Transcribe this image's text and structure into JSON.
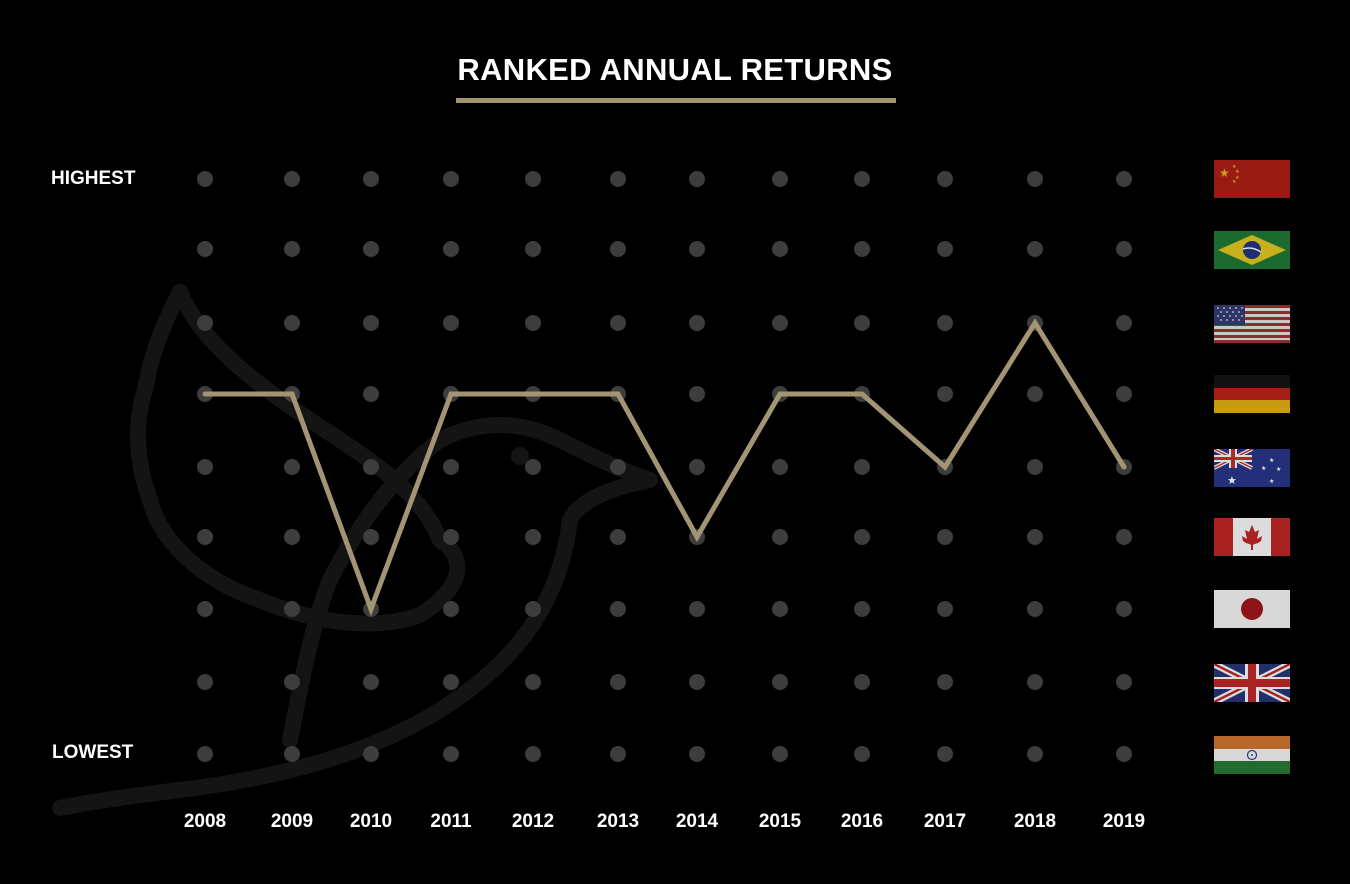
{
  "chart_data": {
    "type": "line",
    "title": "RANKED ANNUAL RETURNS",
    "rank_labels": {
      "highest": "HIGHEST",
      "lowest": "LOWEST"
    },
    "x": [
      "2008",
      "2009",
      "2010",
      "2011",
      "2012",
      "2013",
      "2014",
      "2015",
      "2016",
      "2017",
      "2018",
      "2019"
    ],
    "ranks": [
      {
        "rank": 1,
        "country": "China",
        "flag": "china-flag"
      },
      {
        "rank": 2,
        "country": "Brazil",
        "flag": "brazil-flag"
      },
      {
        "rank": 3,
        "country": "United States",
        "flag": "usa-flag"
      },
      {
        "rank": 4,
        "country": "Germany",
        "flag": "germany-flag"
      },
      {
        "rank": 5,
        "country": "Australia",
        "flag": "australia-flag"
      },
      {
        "rank": 6,
        "country": "Canada",
        "flag": "canada-flag"
      },
      {
        "rank": 7,
        "country": "Japan",
        "flag": "japan-flag"
      },
      {
        "rank": 8,
        "country": "United Kingdom",
        "flag": "uk-flag"
      },
      {
        "rank": 9,
        "country": "India",
        "flag": "india-flag"
      }
    ],
    "series": [
      {
        "values": [
          4,
          4,
          7,
          4,
          4,
          4,
          6,
          4,
          4,
          5,
          3,
          5
        ]
      }
    ],
    "ylim": [
      1,
      9
    ],
    "y_direction": "1 = highest at top, 9 = lowest at bottom",
    "grid": true,
    "legend": "right (flags)"
  },
  "colors": {
    "background": "#000000",
    "line": "#a39574",
    "dot": "#3d3d3d",
    "text": "#ffffff",
    "watermark": "#141414"
  }
}
